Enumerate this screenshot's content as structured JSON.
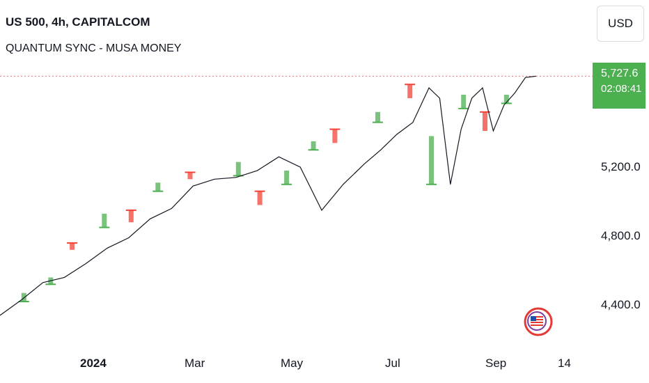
{
  "legend": {
    "title": "US 500, 4h, CAPITALCOM",
    "indicator": "QUANTUM SYNC - MUSA MONEY"
  },
  "toolbar": {
    "currency": "USD"
  },
  "price_tag": {
    "price": "5,727.6",
    "countdown": "02:08:41",
    "color": "#4caf50"
  },
  "colors": {
    "up": "#4caf50",
    "down": "#f44336",
    "up_light": "#c8e6c9",
    "down_light": "#ffcdd2",
    "line": "#131722",
    "dotted": "#e57373"
  },
  "icons": {
    "logo": "us-flag-badge-icon"
  },
  "chart_data": {
    "type": "line",
    "title": "US 500, 4h, CAPITALCOM",
    "symbol": "US 500",
    "timeframe": "4h",
    "exchange": "CAPITALCOM",
    "ylim": [
      4180,
      5850
    ],
    "yticks": [
      {
        "value": 4400,
        "label": "4,400.0"
      },
      {
        "value": 4800,
        "label": "4,800.0"
      },
      {
        "value": 5200,
        "label": "5,200.0"
      }
    ],
    "xticks": [
      {
        "label": "2024",
        "bold": true
      },
      {
        "label": "Mar"
      },
      {
        "label": "May"
      },
      {
        "label": "Jul"
      },
      {
        "label": "Sep"
      },
      {
        "label": "14"
      }
    ],
    "grid": false,
    "last_price": 5727.6,
    "series": [
      {
        "x_index_max": 100,
        "x": [
          0,
          4,
          8,
          12,
          16,
          20,
          24,
          28,
          32,
          36,
          40,
          44,
          48,
          52,
          56,
          60,
          64,
          68,
          71,
          74,
          77,
          80,
          82,
          84,
          86,
          88,
          90,
          92,
          94,
          96,
          98,
          100
        ],
        "values": [
          4340,
          4430,
          4530,
          4560,
          4640,
          4730,
          4790,
          4900,
          4960,
          5090,
          5130,
          5140,
          5180,
          5260,
          5200,
          4950,
          5100,
          5220,
          5300,
          5390,
          5460,
          5660,
          5600,
          5100,
          5420,
          5600,
          5660,
          5410,
          5560,
          5630,
          5720,
          5728
        ]
      }
    ],
    "zones": [
      {
        "x": 4,
        "low": 4420,
        "high": 4470,
        "dir": "up"
      },
      {
        "x": 9,
        "low": 4520,
        "high": 4560,
        "dir": "up"
      },
      {
        "x": 13,
        "low": 4720,
        "high": 4760,
        "dir": "down"
      },
      {
        "x": 19,
        "low": 4850,
        "high": 4930,
        "dir": "up"
      },
      {
        "x": 24,
        "low": 4880,
        "high": 4950,
        "dir": "down"
      },
      {
        "x": 29,
        "low": 5060,
        "high": 5110,
        "dir": "up"
      },
      {
        "x": 35,
        "low": 5130,
        "high": 5170,
        "dir": "down"
      },
      {
        "x": 44,
        "low": 5150,
        "high": 5230,
        "dir": "up"
      },
      {
        "x": 48,
        "low": 4980,
        "high": 5060,
        "dir": "down"
      },
      {
        "x": 53,
        "low": 5100,
        "high": 5180,
        "dir": "up"
      },
      {
        "x": 58,
        "low": 5300,
        "high": 5350,
        "dir": "up"
      },
      {
        "x": 62,
        "low": 5340,
        "high": 5420,
        "dir": "down"
      },
      {
        "x": 70,
        "low": 5460,
        "high": 5520,
        "dir": "up"
      },
      {
        "x": 76,
        "low": 5600,
        "high": 5680,
        "dir": "down"
      },
      {
        "x": 80,
        "low": 5100,
        "high": 5380,
        "dir": "up"
      },
      {
        "x": 86,
        "low": 5540,
        "high": 5620,
        "dir": "up"
      },
      {
        "x": 90,
        "low": 5410,
        "high": 5520,
        "dir": "down"
      },
      {
        "x": 94,
        "low": 5570,
        "high": 5620,
        "dir": "up"
      }
    ]
  }
}
